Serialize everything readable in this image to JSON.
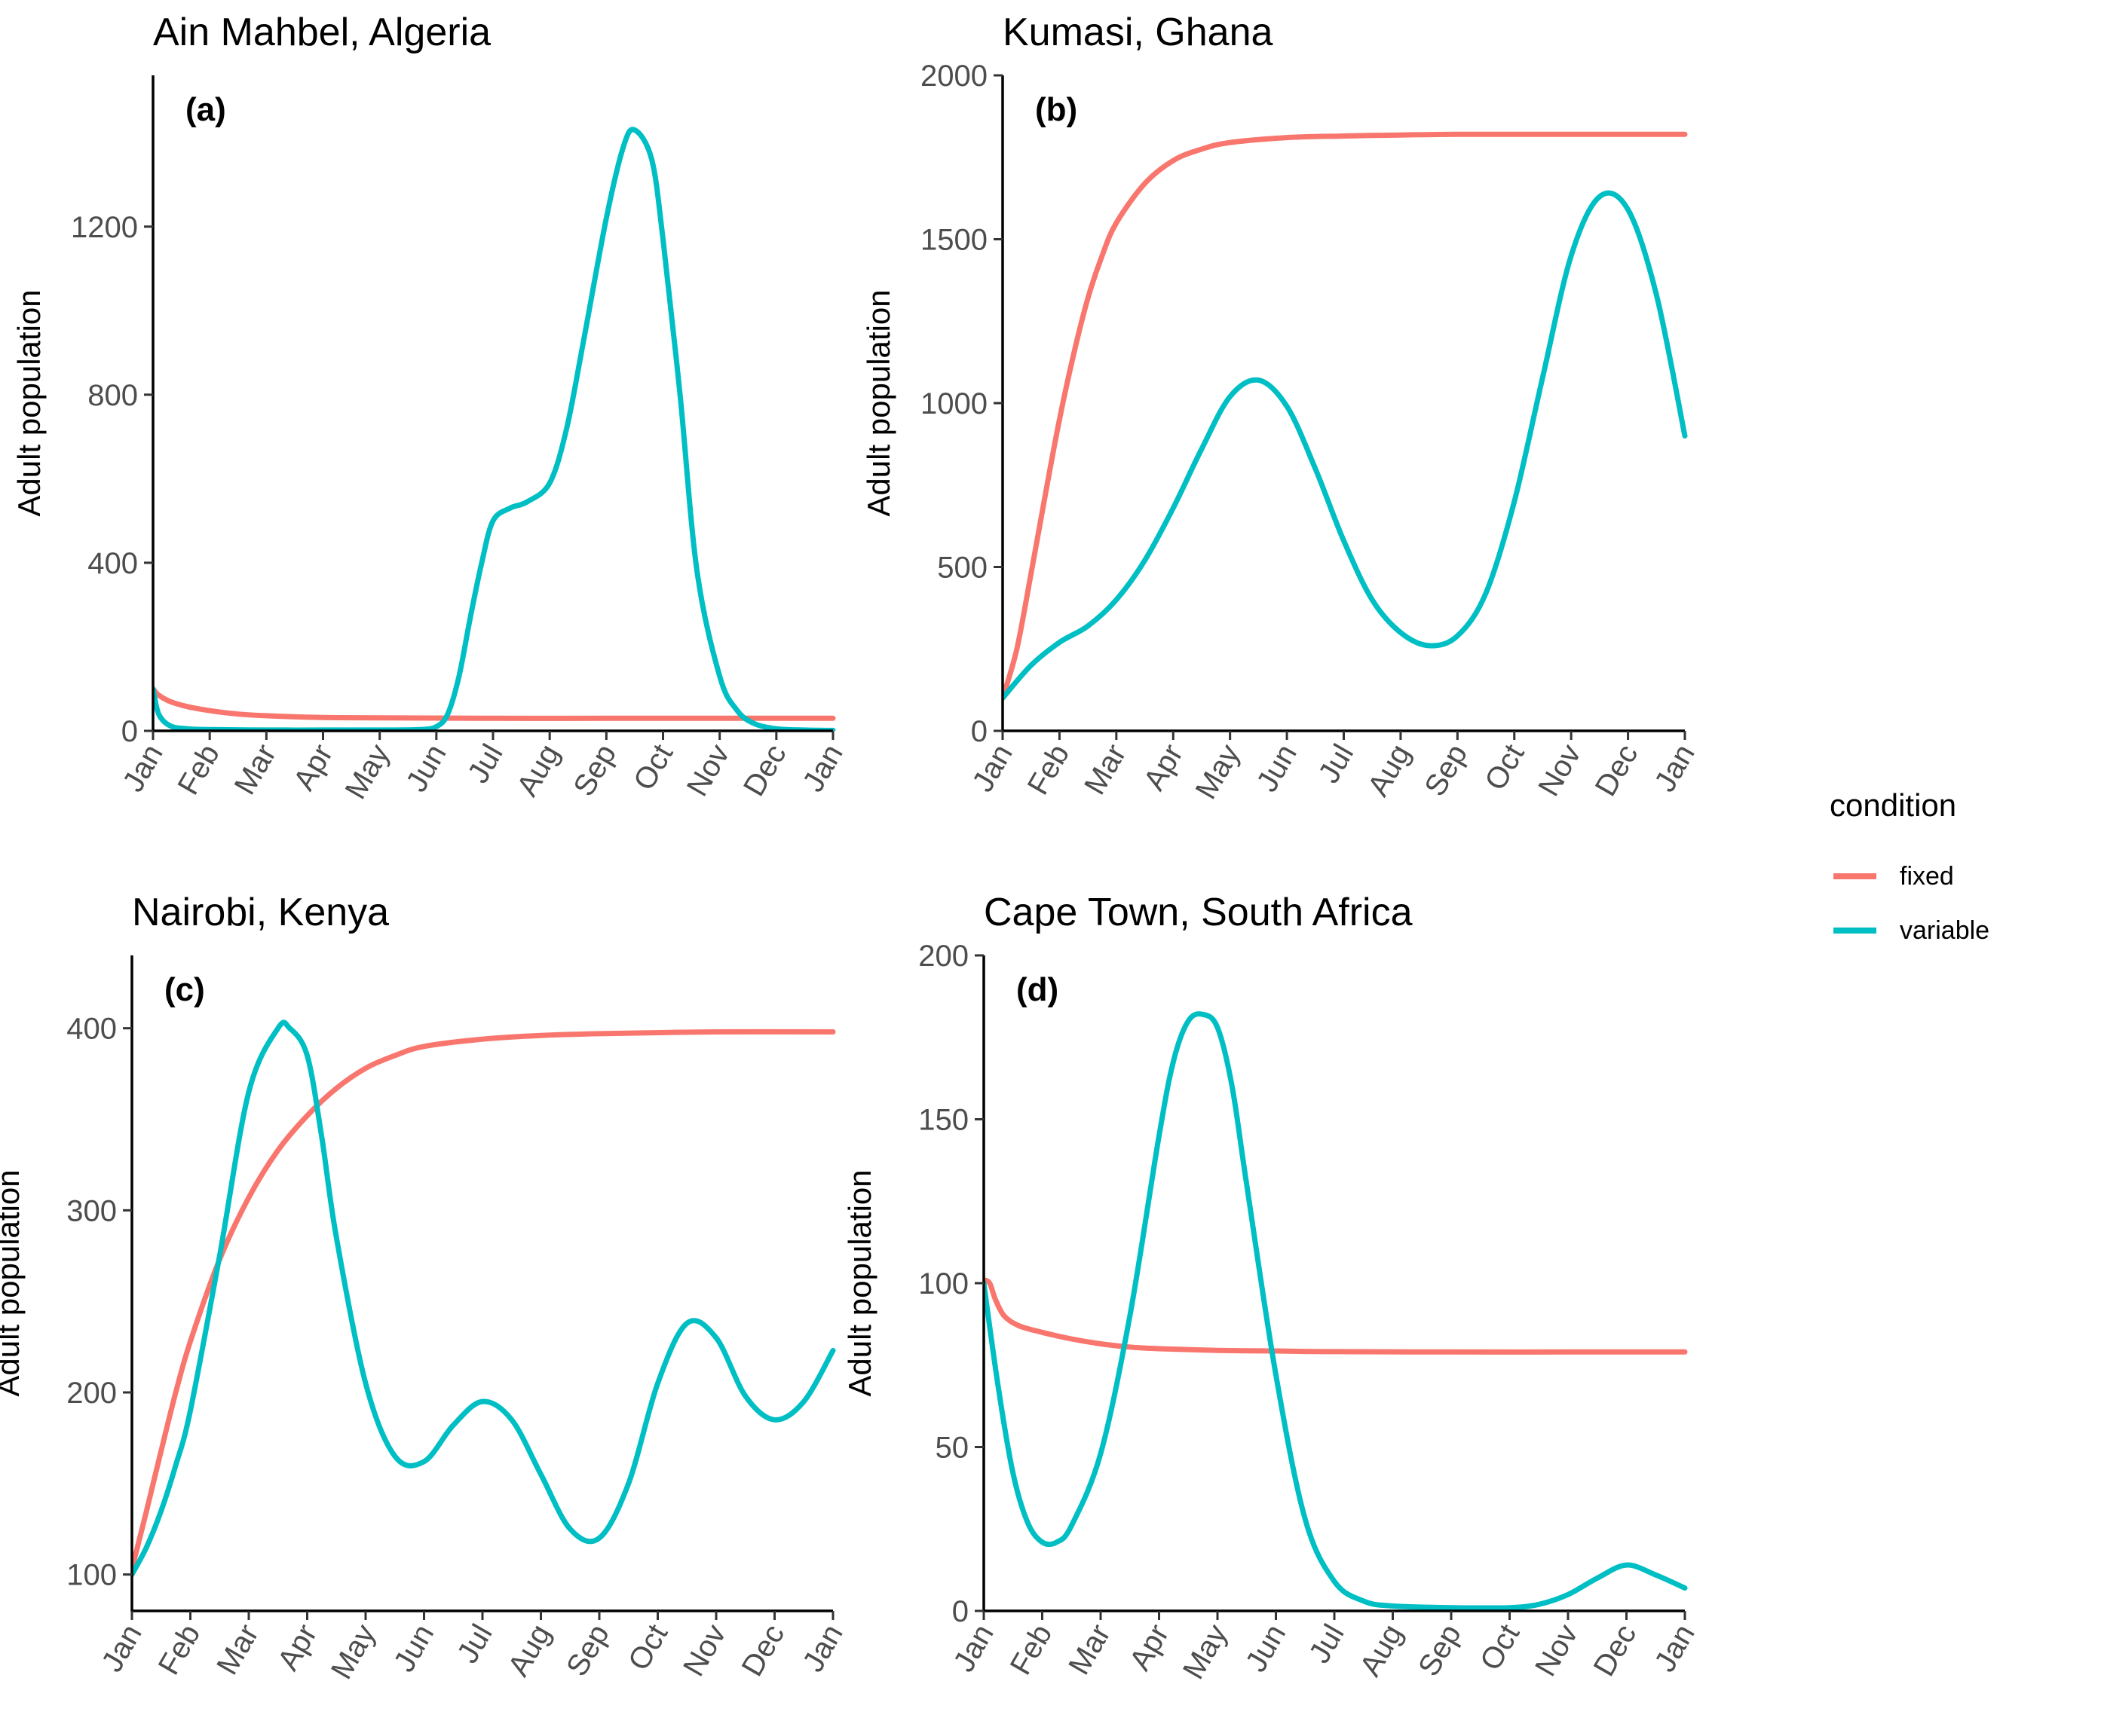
{
  "legend": {
    "title": "condition",
    "items": [
      {
        "label": "fixed",
        "color": "#F8766D"
      },
      {
        "label": "variable",
        "color": "#00BFC4"
      }
    ]
  },
  "chart_data": [
    {
      "type": "line",
      "title": "Ain Mahbel, Algeria",
      "tag": "(a)",
      "ylabel": "Adult population",
      "xlabel": "",
      "ylim": [
        0,
        1560
      ],
      "yticks": [
        0,
        400,
        800,
        1200
      ],
      "xticks": [
        "Jan",
        "Feb",
        "Mar",
        "Apr",
        "May",
        "Jun",
        "Jul",
        "Aug",
        "Sep",
        "Oct",
        "Nov",
        "Dec",
        "Jan"
      ],
      "xlim": [
        0,
        12
      ],
      "series": [
        {
          "name": "fixed",
          "color": "#F8766D",
          "x": [
            0,
            0.1,
            0.3,
            0.6,
            1,
            1.5,
            2,
            3,
            4,
            6,
            8,
            10,
            12
          ],
          "y": [
            100,
            85,
            70,
            58,
            48,
            40,
            36,
            32,
            31,
            30,
            30,
            30,
            30
          ]
        },
        {
          "name": "variable",
          "color": "#00BFC4",
          "x": [
            0,
            0.1,
            0.3,
            0.6,
            1,
            2,
            3,
            4,
            4.7,
            5,
            5.2,
            5.4,
            5.6,
            5.8,
            6,
            6.3,
            6.6,
            7,
            7.3,
            7.6,
            8,
            8.3,
            8.5,
            8.8,
            9,
            9.3,
            9.6,
            10,
            10.3,
            10.6,
            11,
            11.5,
            12
          ],
          "y": [
            100,
            40,
            12,
            5,
            3,
            2,
            2,
            2,
            3,
            10,
            40,
            130,
            270,
            400,
            500,
            530,
            545,
            590,
            720,
            930,
            1220,
            1390,
            1430,
            1360,
            1170,
            800,
            380,
            130,
            50,
            18,
            5,
            2,
            1
          ]
        }
      ]
    },
    {
      "type": "line",
      "title": "Kumasi, Ghana",
      "tag": "(b)",
      "ylabel": "Adult population",
      "xlabel": "",
      "ylim": [
        0,
        2000
      ],
      "yticks": [
        0,
        500,
        1000,
        1500,
        2000
      ],
      "xticks": [
        "Jan",
        "Feb",
        "Mar",
        "Apr",
        "May",
        "Jun",
        "Jul",
        "Aug",
        "Sep",
        "Oct",
        "Nov",
        "Dec",
        "Jan"
      ],
      "xlim": [
        0,
        12
      ],
      "series": [
        {
          "name": "fixed",
          "color": "#F8766D",
          "x": [
            0,
            0.25,
            0.5,
            0.75,
            1,
            1.25,
            1.5,
            1.75,
            2,
            2.5,
            3,
            3.5,
            4,
            5,
            6,
            7,
            8,
            10,
            12
          ],
          "y": [
            100,
            250,
            480,
            720,
            950,
            1150,
            1320,
            1450,
            1550,
            1670,
            1740,
            1775,
            1795,
            1810,
            1815,
            1818,
            1820,
            1820,
            1820
          ]
        },
        {
          "name": "variable",
          "color": "#00BFC4",
          "x": [
            0,
            0.5,
            1,
            1.5,
            2,
            2.5,
            3,
            3.5,
            4,
            4.5,
            5,
            5.5,
            6,
            6.5,
            7,
            7.5,
            8,
            8.5,
            9,
            9.5,
            10,
            10.5,
            11,
            11.5,
            12
          ],
          "y": [
            100,
            200,
            270,
            320,
            400,
            520,
            680,
            860,
            1020,
            1070,
            990,
            800,
            580,
            400,
            300,
            260,
            290,
            420,
            700,
            1080,
            1450,
            1630,
            1590,
            1330,
            900
          ]
        }
      ]
    },
    {
      "type": "line",
      "title": "Nairobi, Kenya",
      "tag": "(c)",
      "ylabel": "Adult population",
      "xlabel": "",
      "ylim": [
        80,
        440
      ],
      "yticks": [
        100,
        200,
        300,
        400
      ],
      "xticks": [
        "Jan",
        "Feb",
        "Mar",
        "Apr",
        "May",
        "Jun",
        "Jul",
        "Aug",
        "Sep",
        "Oct",
        "Nov",
        "Dec",
        "Jan"
      ],
      "xlim": [
        0,
        12
      ],
      "series": [
        {
          "name": "fixed",
          "color": "#F8766D",
          "x": [
            0,
            0.25,
            0.5,
            0.75,
            1,
            1.5,
            2,
            2.5,
            3,
            3.5,
            4,
            4.5,
            5,
            6,
            7,
            8,
            10,
            12
          ],
          "y": [
            103,
            135,
            168,
            200,
            228,
            273,
            307,
            333,
            352,
            367,
            378,
            385,
            390,
            394,
            396,
            397,
            398,
            398
          ]
        },
        {
          "name": "variable",
          "color": "#00BFC4",
          "x": [
            0,
            0.25,
            0.5,
            0.75,
            1,
            1.5,
            2,
            2.5,
            2.7,
            3,
            3.25,
            3.5,
            4,
            4.5,
            5,
            5.5,
            6,
            6.5,
            7,
            7.5,
            8,
            8.5,
            9,
            9.5,
            10,
            10.5,
            11,
            11.5,
            12
          ],
          "y": [
            100,
            115,
            135,
            160,
            190,
            275,
            365,
            400,
            400,
            385,
            340,
            285,
            205,
            165,
            162,
            182,
            195,
            185,
            155,
            125,
            120,
            150,
            205,
            238,
            230,
            198,
            185,
            195,
            223
          ]
        }
      ]
    },
    {
      "type": "line",
      "title": "Cape Town, South Africa",
      "tag": "(d)",
      "ylabel": "Adult population",
      "xlabel": "",
      "ylim": [
        0,
        200
      ],
      "yticks": [
        0,
        50,
        100,
        150,
        200
      ],
      "xticks": [
        "Jan",
        "Feb",
        "Mar",
        "Apr",
        "May",
        "Jun",
        "Jul",
        "Aug",
        "Sep",
        "Oct",
        "Nov",
        "Dec",
        "Jan"
      ],
      "xlim": [
        0,
        12
      ],
      "series": [
        {
          "name": "fixed",
          "color": "#F8766D",
          "x": [
            0,
            0.1,
            0.2,
            0.35,
            0.6,
            1,
            1.5,
            2,
            2.5,
            3,
            4,
            5,
            6,
            8,
            10,
            12
          ],
          "y": [
            101,
            100,
            95,
            90,
            87,
            85,
            83,
            81.5,
            80.5,
            80,
            79.5,
            79.3,
            79.1,
            79,
            79,
            79
          ]
        },
        {
          "name": "variable",
          "color": "#00BFC4",
          "x": [
            0,
            0.25,
            0.5,
            0.75,
            1,
            1.25,
            1.5,
            2,
            2.5,
            3,
            3.25,
            3.5,
            3.75,
            4,
            4.25,
            4.5,
            5,
            5.5,
            6,
            6.5,
            7,
            8,
            9,
            9.5,
            10,
            10.5,
            11,
            11.5,
            12
          ],
          "y": [
            100,
            68,
            42,
            27,
            21,
            21,
            26,
            48,
            90,
            145,
            168,
            180,
            182,
            178,
            160,
            130,
            72,
            28,
            9,
            3,
            1.5,
            1,
            1,
            2,
            5,
            10,
            14,
            11,
            7
          ]
        }
      ]
    }
  ]
}
